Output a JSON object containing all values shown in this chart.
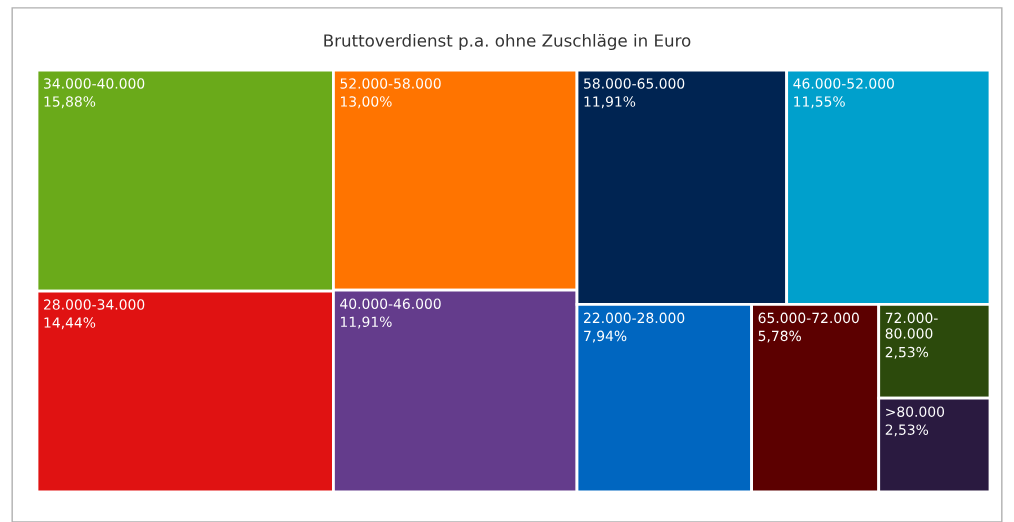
{
  "chart_data": {
    "type": "other",
    "title": "Bruttoverdienst p.a. ohne Zuschläge in Euro",
    "categories": [
      "34.000-40.000",
      "28.000-34.000",
      "52.000-58.000",
      "40.000-46.000",
      "58.000-65.000",
      "46.000-52.000",
      "22.000-28.000",
      "65.000-72.000",
      "72.000-80.000",
      ">80.000"
    ],
    "values": [
      15.88,
      14.44,
      13.0,
      11.91,
      11.91,
      11.55,
      7.94,
      5.78,
      2.53,
      2.53
    ],
    "value_labels": [
      "15,88%",
      "14,44%",
      "13,00%",
      "11,91%",
      "11,91%",
      "11,55%",
      "7,94%",
      "5,78%",
      "2,53%",
      "2,53%"
    ],
    "colors": [
      "#6aaa1a",
      "#e01212",
      "#ff7400",
      "#643c8c",
      "#002452",
      "#00a0cc",
      "#0066c0",
      "#5c0000",
      "#2c4a0c",
      "#2a1a40"
    ]
  }
}
